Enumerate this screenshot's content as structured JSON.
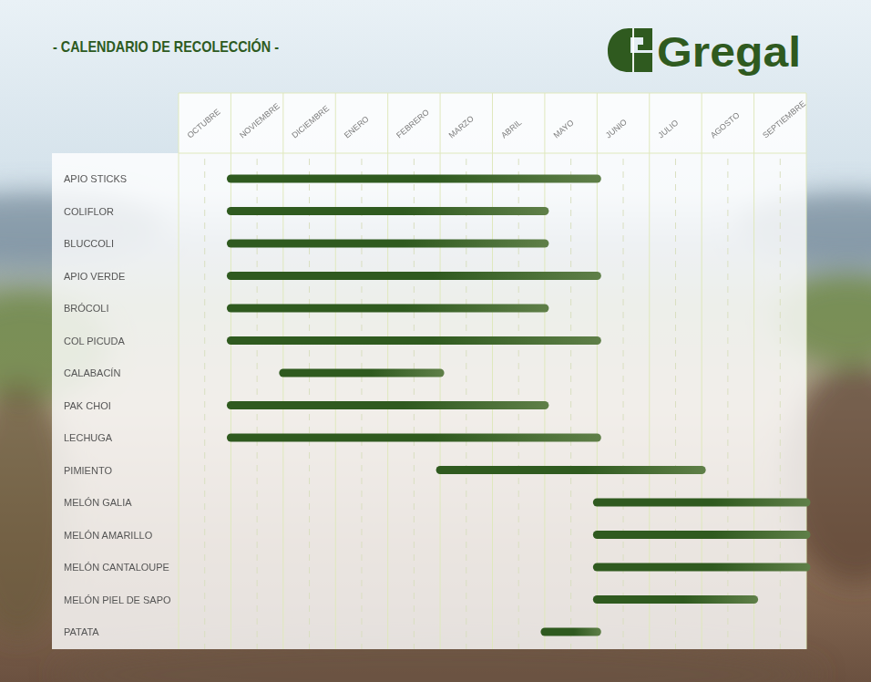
{
  "chart_data": {
    "type": "gantt",
    "title": "- CALENDARIO DE RECOLECCIÓN -",
    "logo_text": "Gregal",
    "categories": [
      "OCTUBRE",
      "NOVIEMBRE",
      "DICIEMBRE",
      "ENERO",
      "FEBRERO",
      "MARZO",
      "ABRIL",
      "MAYO",
      "JUNIO",
      "JULIO",
      "AGOSTO",
      "SEPTIEMBRE"
    ],
    "xlim": [
      0,
      12
    ],
    "grid": true,
    "color": "#2f5a1f",
    "tasks": [
      {
        "name": "APIO STICKS",
        "start": 1,
        "end": 8
      },
      {
        "name": "COLIFLOR",
        "start": 1,
        "end": 7
      },
      {
        "name": "BLUCCOLI",
        "start": 1,
        "end": 7
      },
      {
        "name": "APIO VERDE",
        "start": 1,
        "end": 8
      },
      {
        "name": "BRÓCOLI",
        "start": 1,
        "end": 7
      },
      {
        "name": "COL PICUDA",
        "start": 1,
        "end": 8
      },
      {
        "name": "CALABACÍN",
        "start": 2,
        "end": 5
      },
      {
        "name": "PAK CHOI",
        "start": 1,
        "end": 7
      },
      {
        "name": "LECHUGA",
        "start": 1,
        "end": 8
      },
      {
        "name": "PIMIENTO",
        "start": 5,
        "end": 10
      },
      {
        "name": "MELÓN GALIA",
        "start": 8,
        "end": 12
      },
      {
        "name": "MELÓN AMARILLO",
        "start": 8,
        "end": 12
      },
      {
        "name": "MELÓN CANTALOUPE",
        "start": 8,
        "end": 12
      },
      {
        "name": "MELÓN PIEL DE SAPO",
        "start": 8,
        "end": 11
      },
      {
        "name": "PATATA",
        "start": 7,
        "end": 8
      }
    ]
  }
}
